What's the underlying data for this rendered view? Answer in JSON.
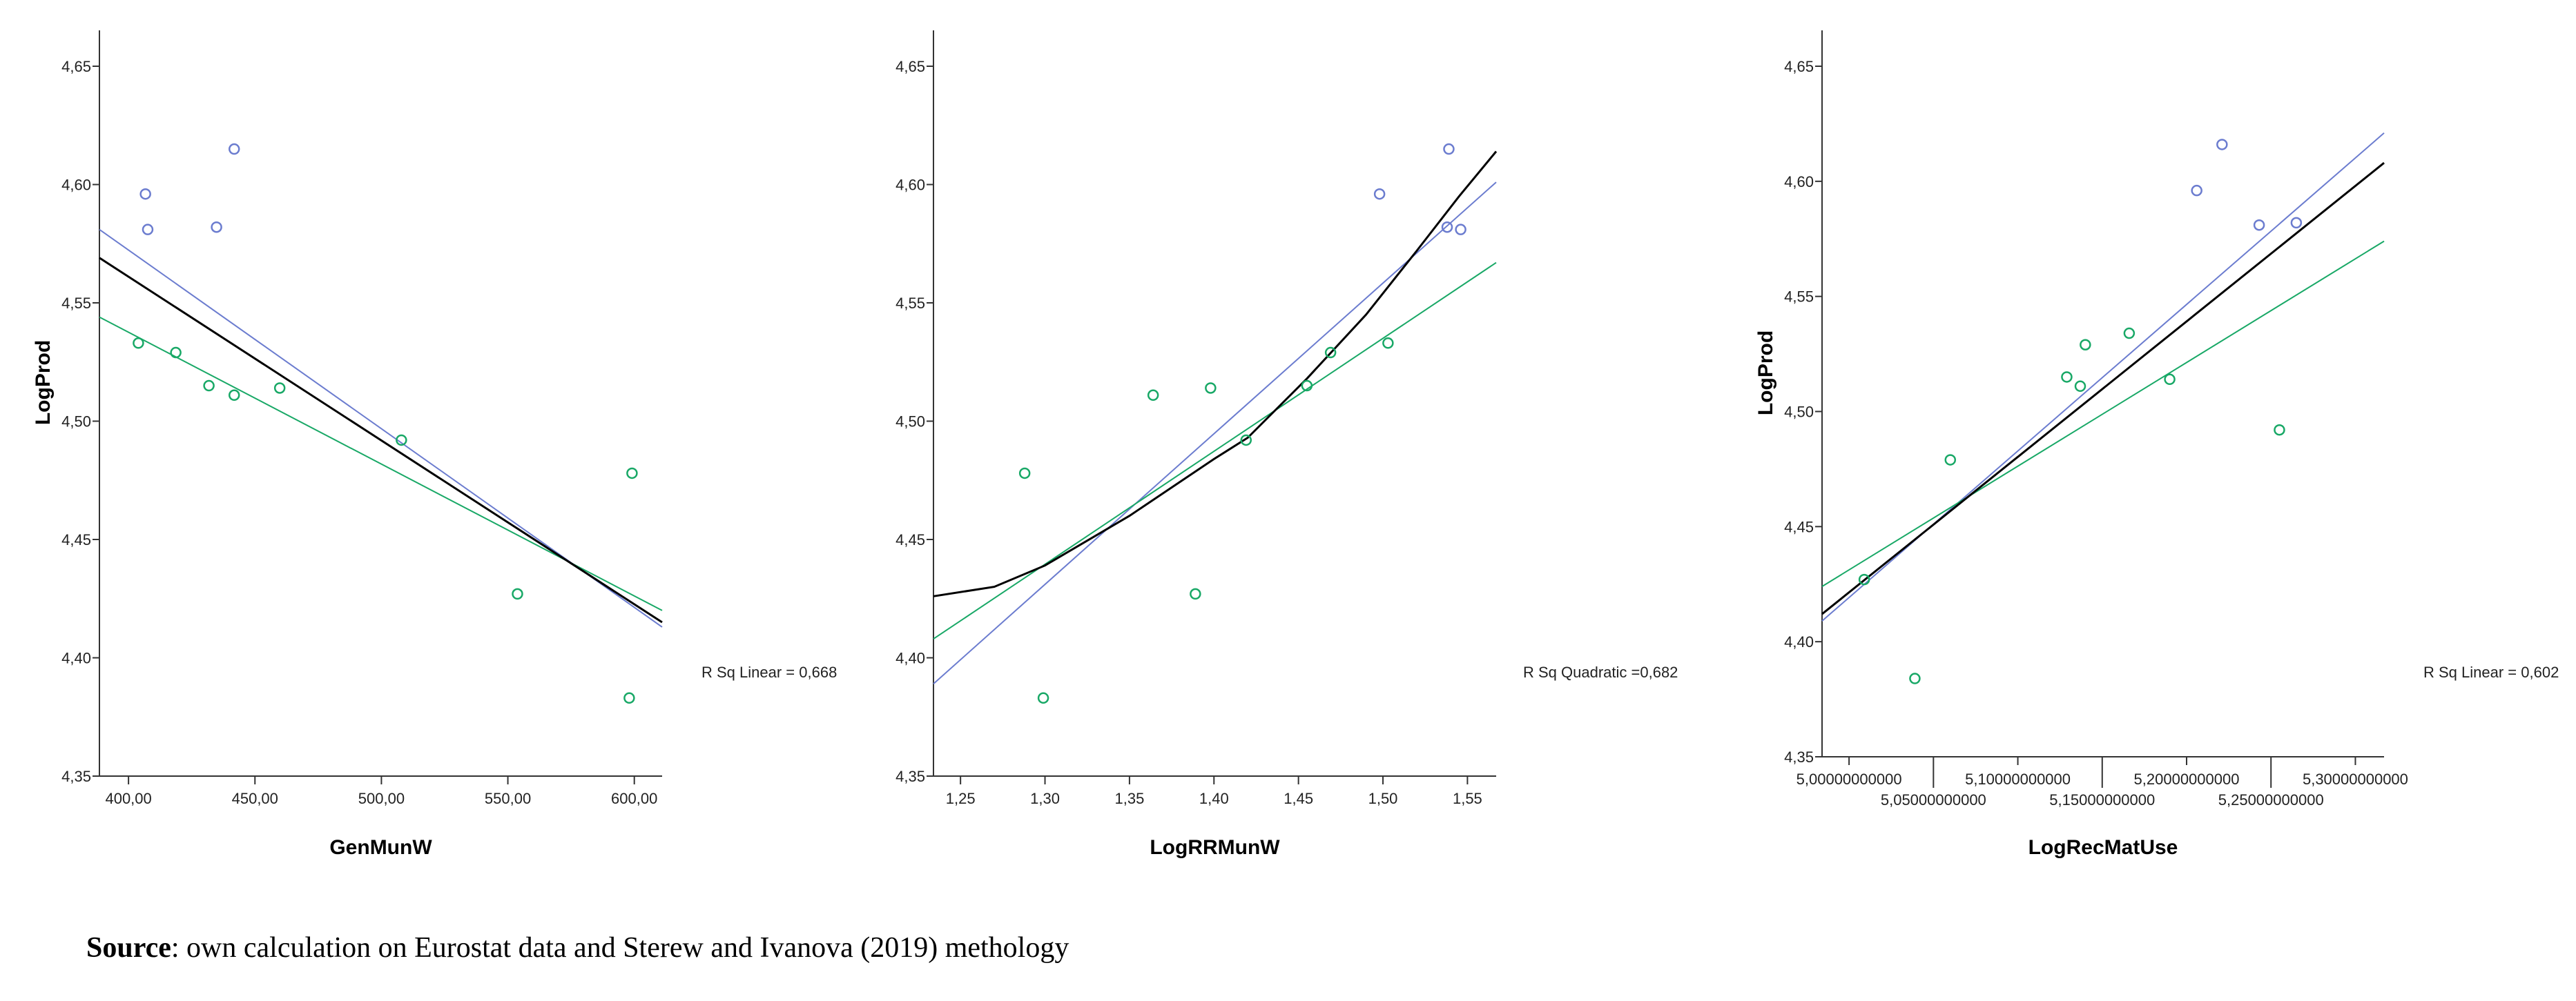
{
  "caption": {
    "bold": "Source",
    "rest": ": own calculation on Eurostat data and Sterew and Ivanova (2019) methology"
  },
  "colors": {
    "blue": "#6b7ccf",
    "green": "#18a866",
    "black": "#000000"
  },
  "chart_data": [
    {
      "type": "scatter",
      "xlabel": "GenMunW",
      "ylabel": "LogProd",
      "xlim": [
        388.5,
        611
      ],
      "ylim": [
        4.35,
        4.665
      ],
      "xticks": [
        400,
        450,
        500,
        550,
        600
      ],
      "xtick_labels": [
        "400,00",
        "450,00",
        "500,00",
        "550,00",
        "600,00"
      ],
      "yticks": [
        4.35,
        4.4,
        4.45,
        4.5,
        4.55,
        4.6,
        4.65
      ],
      "ytick_labels": [
        "4,35",
        "4,40",
        "4,45",
        "4,50",
        "4,55",
        "4,60",
        "4,65"
      ],
      "annotation": "R Sq Linear = 0,668",
      "series": [
        {
          "name": "blue group",
          "color": "blue",
          "points": [
            [
              406.7,
              4.596
            ],
            [
              407.6,
              4.581
            ],
            [
              434.8,
              4.582
            ],
            [
              441.8,
              4.615
            ]
          ]
        },
        {
          "name": "green group",
          "color": "green",
          "points": [
            [
              403.9,
              4.533
            ],
            [
              418.7,
              4.529
            ],
            [
              431.8,
              4.515
            ],
            [
              441.8,
              4.511
            ],
            [
              459.8,
              4.514
            ],
            [
              507.9,
              4.492
            ],
            [
              553.8,
              4.427
            ],
            [
              599.1,
              4.478
            ],
            [
              598.0,
              4.383
            ]
          ]
        }
      ],
      "fit_lines": [
        {
          "name": "blue fit",
          "color": "blue",
          "points": [
            [
              388.5,
              4.581
            ],
            [
              611,
              4.413
            ]
          ]
        },
        {
          "name": "green fit",
          "color": "green",
          "points": [
            [
              388.5,
              4.544
            ],
            [
              611,
              4.42
            ]
          ]
        },
        {
          "name": "total fit",
          "color": "black",
          "points": [
            [
              388.5,
              4.569
            ],
            [
              611,
              4.415
            ]
          ]
        }
      ]
    },
    {
      "type": "scatter",
      "xlabel": "LogRRMunW",
      "ylabel": "",
      "xlim": [
        1.234,
        1.567
      ],
      "ylim": [
        4.35,
        4.665
      ],
      "xticks": [
        1.25,
        1.3,
        1.35,
        1.4,
        1.45,
        1.5,
        1.55
      ],
      "xtick_labels": [
        "1,25",
        "1,30",
        "1,35",
        "1,40",
        "1,45",
        "1,50",
        "1,55"
      ],
      "yticks": [
        4.35,
        4.4,
        4.45,
        4.5,
        4.55,
        4.6,
        4.65
      ],
      "ytick_labels": [
        "4,35",
        "4,40",
        "4,45",
        "4,50",
        "4,55",
        "4,60",
        "4,65"
      ],
      "annotation": "R Sq Quadratic =0,682",
      "series": [
        {
          "name": "blue group",
          "color": "blue",
          "points": [
            [
              1.539,
              4.615
            ],
            [
              1.498,
              4.596
            ],
            [
              1.538,
              4.582
            ],
            [
              1.546,
              4.581
            ]
          ]
        },
        {
          "name": "green group",
          "color": "green",
          "points": [
            [
              1.503,
              4.533
            ],
            [
              1.469,
              4.529
            ],
            [
              1.455,
              4.515
            ],
            [
              1.364,
              4.511
            ],
            [
              1.398,
              4.514
            ],
            [
              1.419,
              4.492
            ],
            [
              1.389,
              4.427
            ],
            [
              1.288,
              4.478
            ],
            [
              1.299,
              4.383
            ]
          ]
        }
      ],
      "fit_lines": [
        {
          "name": "blue fit",
          "color": "blue",
          "points": [
            [
              1.234,
              4.389
            ],
            [
              1.567,
              4.601
            ]
          ]
        },
        {
          "name": "green fit",
          "color": "green",
          "points": [
            [
              1.234,
              4.408
            ],
            [
              1.567,
              4.567
            ]
          ]
        },
        {
          "name": "quadratic fit",
          "color": "black",
          "points": [
            [
              1.234,
              4.426
            ],
            [
              1.27,
              4.43
            ],
            [
              1.3,
              4.439
            ],
            [
              1.35,
              4.46
            ],
            [
              1.4,
              4.484
            ],
            [
              1.42,
              4.493
            ],
            [
              1.455,
              4.518
            ],
            [
              1.49,
              4.545
            ],
            [
              1.52,
              4.572
            ],
            [
              1.545,
              4.595
            ],
            [
              1.567,
              4.614
            ]
          ]
        }
      ]
    },
    {
      "type": "scatter",
      "xlabel": "LogRecMatUse",
      "ylabel": "LogProd",
      "xlim": [
        4.984,
        5.317
      ],
      "ylim": [
        4.35,
        4.665
      ],
      "xticks": [
        5.0,
        5.05,
        5.1,
        5.15,
        5.2,
        5.25,
        5.3
      ],
      "xtick_labels": [
        "5,00000000000",
        "5,05000000000",
        "5,10000000000",
        "5,15000000000",
        "5,20000000000",
        "5,25000000000",
        "5,30000000000"
      ],
      "yticks": [
        4.35,
        4.4,
        4.45,
        4.5,
        4.55,
        4.6,
        4.65
      ],
      "ytick_labels": [
        "4,35",
        "4,40",
        "4,45",
        "4,50",
        "4,55",
        "4,60",
        "4,65"
      ],
      "annotation": "R Sq Linear = 0,602",
      "series": [
        {
          "name": "blue group",
          "color": "blue",
          "points": [
            [
              5.221,
              4.616
            ],
            [
              5.206,
              4.596
            ],
            [
              5.243,
              4.581
            ],
            [
              5.265,
              4.582
            ]
          ]
        },
        {
          "name": "green group",
          "color": "green",
          "points": [
            [
              5.166,
              4.534
            ],
            [
              5.14,
              4.529
            ],
            [
              5.129,
              4.515
            ],
            [
              5.137,
              4.511
            ],
            [
              5.19,
              4.514
            ],
            [
              5.255,
              4.492
            ],
            [
              5.009,
              4.427
            ],
            [
              5.06,
              4.479
            ],
            [
              5.039,
              4.384
            ]
          ]
        }
      ],
      "fit_lines": [
        {
          "name": "blue fit",
          "color": "blue",
          "points": [
            [
              4.984,
              4.409
            ],
            [
              5.317,
              4.621
            ]
          ]
        },
        {
          "name": "green fit",
          "color": "green",
          "points": [
            [
              4.984,
              4.424
            ],
            [
              5.317,
              4.574
            ]
          ]
        },
        {
          "name": "total fit",
          "color": "black",
          "points": [
            [
              4.984,
              4.412
            ],
            [
              5.317,
              4.608
            ]
          ]
        }
      ]
    }
  ]
}
